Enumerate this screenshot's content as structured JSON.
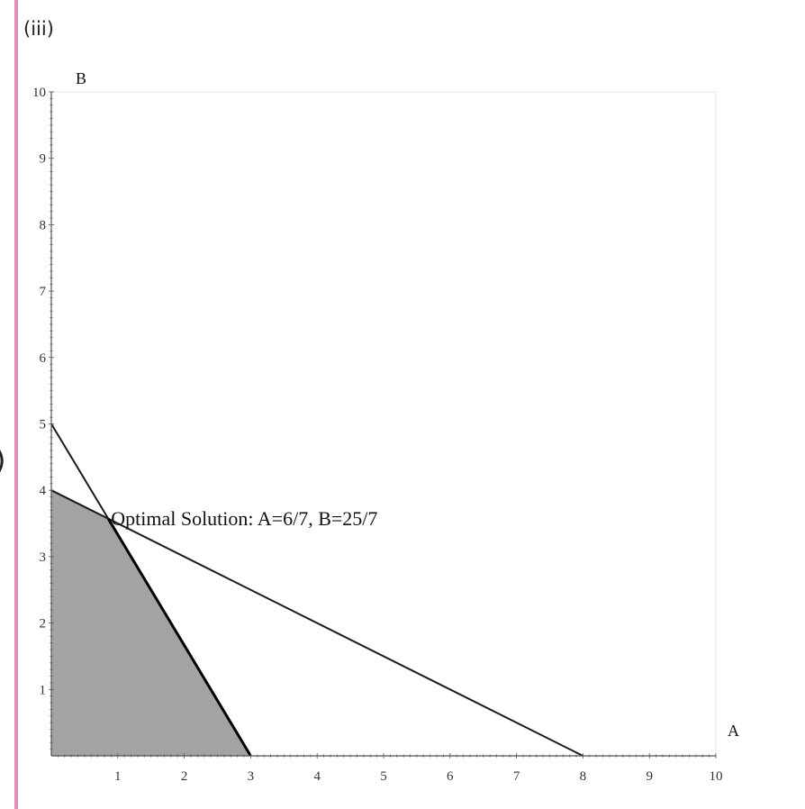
{
  "part_label": "(iii)",
  "edge_paren": ")",
  "chart_data": {
    "type": "line",
    "xlabel": "A",
    "ylabel": "B",
    "xlim": [
      0,
      10
    ],
    "ylim": [
      0,
      10
    ],
    "x_ticks": [
      "1",
      "2",
      "3",
      "4",
      "5",
      "6",
      "7",
      "8",
      "9",
      "10"
    ],
    "y_ticks": [
      "1",
      "2",
      "3",
      "4",
      "5",
      "6",
      "7",
      "8",
      "9",
      "10"
    ],
    "grid": false,
    "series": [
      {
        "x": [
          0,
          3
        ],
        "y": [
          5,
          0
        ]
      },
      {
        "x": [
          0,
          8
        ],
        "y": [
          4,
          0
        ]
      }
    ],
    "feasible_region": {
      "x": [
        0,
        0,
        0.857,
        3
      ],
      "y": [
        0,
        4,
        3.571,
        0
      ]
    },
    "optimal_point": {
      "x": 0.857,
      "y": 3.571
    },
    "annotation": "Optimal Solution: A=6/7, B=25/7",
    "colors": {
      "region": "#a3a3a3",
      "line": "#1a1a1a",
      "axis": "#555555",
      "frame": "#e4e4e4"
    }
  }
}
